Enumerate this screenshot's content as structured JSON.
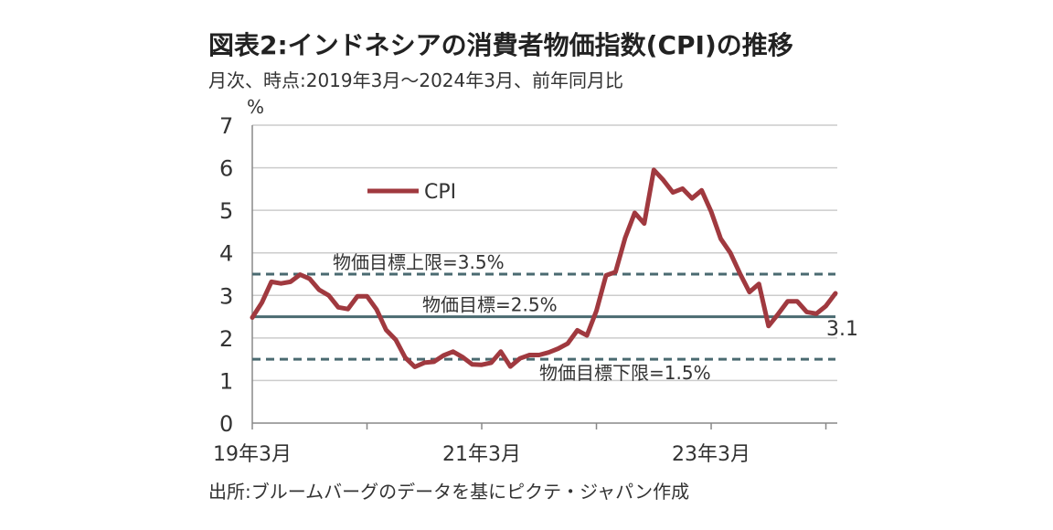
{
  "header": {
    "title": "図表2:インドネシアの消費者物価指数(CPI)の推移",
    "subtitle": "月次、時点:2019年3月～2024年3月、前年同月比"
  },
  "footer": {
    "source": "出所:ブルームバーグのデータを基にピクテ・ジャパン作成"
  },
  "colors": {
    "cpi_line": "#a0393f",
    "target_line": "#4a6a70",
    "grid": "#cccccc",
    "axis": "#888888"
  },
  "chart_data": {
    "type": "line",
    "y_unit_label": "%",
    "ylim": [
      0,
      7
    ],
    "y_ticks": [
      0,
      1,
      2,
      3,
      4,
      5,
      6,
      7
    ],
    "grid": true,
    "legend_position": "top-left",
    "x_tick_labels": [
      {
        "index": 0,
        "label": "19年3月"
      },
      {
        "index": 24,
        "label": "21年3月"
      },
      {
        "index": 48,
        "label": "23年3月"
      }
    ],
    "series": [
      {
        "name": "CPI",
        "color": "#a0393f",
        "x_start": "2019-03",
        "values": [
          2.48,
          2.83,
          3.32,
          3.28,
          3.32,
          3.49,
          3.39,
          3.13,
          3.0,
          2.72,
          2.68,
          2.98,
          2.98,
          2.67,
          2.19,
          1.96,
          1.54,
          1.32,
          1.42,
          1.44,
          1.59,
          1.68,
          1.55,
          1.38,
          1.37,
          1.42,
          1.68,
          1.33,
          1.52,
          1.6,
          1.6,
          1.66,
          1.75,
          1.87,
          2.18,
          2.06,
          2.64,
          3.47,
          3.55,
          4.35,
          4.94,
          4.69,
          5.95,
          5.71,
          5.42,
          5.51,
          5.28,
          5.47,
          4.97,
          4.33,
          4.0,
          3.52,
          3.08,
          3.27,
          2.28,
          2.56,
          2.86,
          2.86,
          2.61,
          2.57,
          2.75,
          3.05
        ]
      }
    ],
    "reference_lines": [
      {
        "name": "物価目標上限=3.5%",
        "value": 3.5,
        "style": "dashed"
      },
      {
        "name": "物価目標=2.5%",
        "value": 2.5,
        "style": "solid"
      },
      {
        "name": "物価目標下限=1.5%",
        "value": 1.5,
        "style": "dashed"
      }
    ],
    "end_label": "3.1"
  }
}
